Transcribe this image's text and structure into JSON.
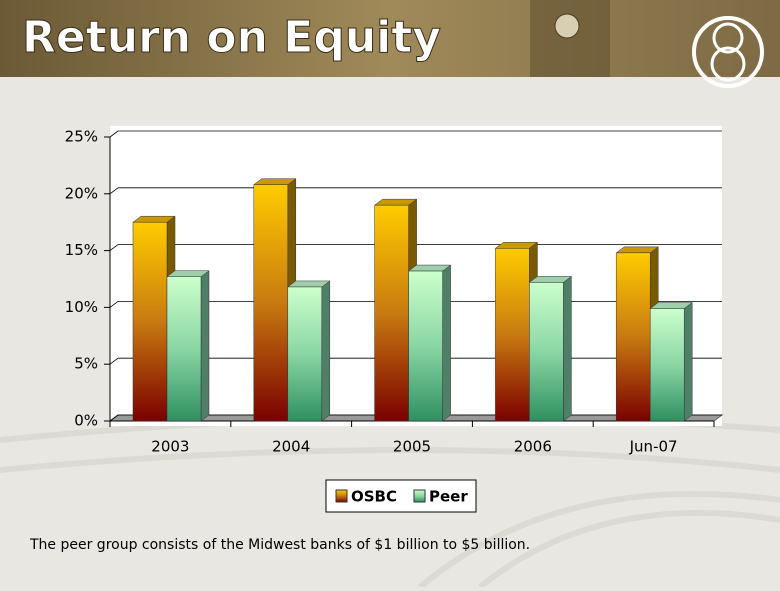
{
  "title": "Return on Equity",
  "footnote": "The peer group consists of the Midwest banks of $1 billion to $5 billion.",
  "chart_data": {
    "type": "bar",
    "categories": [
      "2003",
      "2004",
      "2005",
      "2006",
      "Jun-07"
    ],
    "series": [
      {
        "name": "OSBC",
        "color": "#ffcc00",
        "values": [
          17.5,
          20.8,
          19.0,
          15.2,
          14.8
        ]
      },
      {
        "name": "Peer",
        "color": "#ccffcc",
        "values": [
          12.7,
          11.8,
          13.2,
          12.2,
          9.9
        ]
      }
    ],
    "ylim": [
      0,
      25
    ],
    "yticks": [
      {
        "value": 0,
        "label": "0%"
      },
      {
        "value": 5,
        "label": "5%"
      },
      {
        "value": 10,
        "label": "10%"
      },
      {
        "value": 15,
        "label": "15%"
      },
      {
        "value": 20,
        "label": "20%"
      },
      {
        "value": 25,
        "label": "25%"
      }
    ],
    "grid": true,
    "legend": "bottom"
  }
}
